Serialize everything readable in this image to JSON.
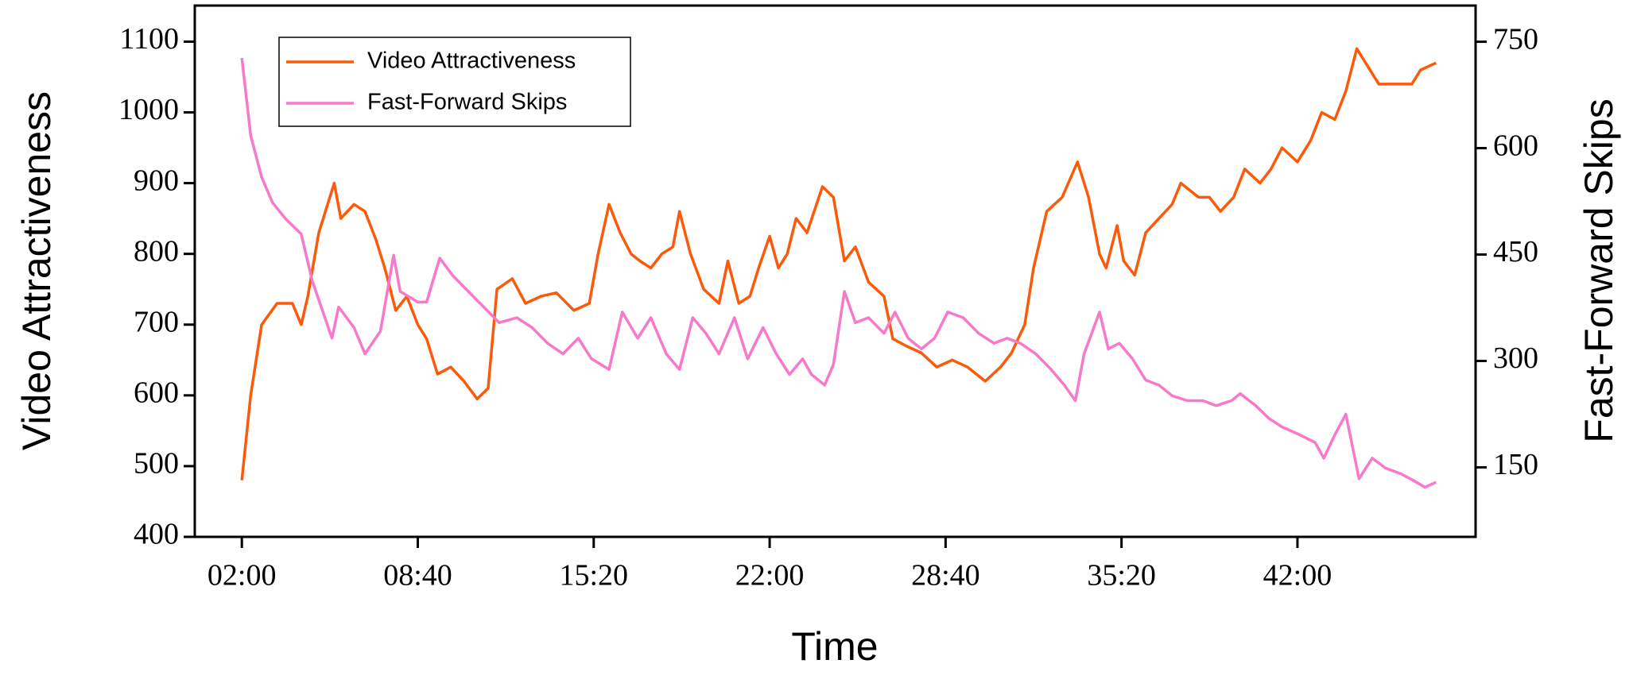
{
  "chart_data": {
    "type": "line",
    "x_label": "Time",
    "y_label": "Video Attractiveness",
    "y2_label": "Fast-Forward Skips",
    "xlim": [
      13,
      2925
    ],
    "xticks": [
      {
        "value": 120,
        "label": "02:00"
      },
      {
        "value": 520,
        "label": "08:40"
      },
      {
        "value": 920,
        "label": "15:20"
      },
      {
        "value": 1320,
        "label": "22:00"
      },
      {
        "value": 1720,
        "label": "28:40"
      },
      {
        "value": 2120,
        "label": "35:20"
      },
      {
        "value": 2520,
        "label": "42:00"
      }
    ],
    "ylim": [
      400,
      1151
    ],
    "yticks": [
      400,
      500,
      600,
      700,
      800,
      900,
      1000,
      1100
    ],
    "y2lim": [
      52,
      801
    ],
    "y2ticks": [
      150,
      300,
      450,
      600,
      750
    ],
    "legend": "upper-left",
    "series": [
      {
        "name": "Video Attractiveness",
        "color": "#fa5a0a",
        "axis": "y",
        "x": [
          120,
          140,
          165,
          200,
          235,
          255,
          270,
          295,
          330,
          345,
          375,
          400,
          425,
          445,
          470,
          495,
          520,
          540,
          565,
          595,
          625,
          655,
          680,
          700,
          735,
          765,
          800,
          835,
          875,
          910,
          930,
          955,
          980,
          1005,
          1025,
          1050,
          1075,
          1100,
          1115,
          1140,
          1170,
          1205,
          1225,
          1250,
          1275,
          1295,
          1320,
          1340,
          1360,
          1380,
          1405,
          1440,
          1465,
          1490,
          1515,
          1545,
          1580,
          1600,
          1630,
          1665,
          1700,
          1735,
          1770,
          1810,
          1845,
          1870,
          1900,
          1920,
          1950,
          1985,
          2020,
          2045,
          2070,
          2085,
          2110,
          2125,
          2150,
          2175,
          2205,
          2235,
          2255,
          2295,
          2320,
          2345,
          2375,
          2400,
          2435,
          2460,
          2485,
          2520,
          2550,
          2575,
          2605,
          2630,
          2655,
          2685,
          2705,
          2745,
          2780,
          2800,
          2835
        ],
        "values": [
          480,
          600,
          700,
          730,
          730,
          700,
          740,
          830,
          900,
          850,
          870,
          860,
          820,
          780,
          720,
          740,
          700,
          680,
          630,
          640,
          620,
          595,
          610,
          750,
          765,
          730,
          740,
          745,
          720,
          730,
          800,
          870,
          830,
          800,
          790,
          780,
          800,
          810,
          860,
          800,
          750,
          730,
          790,
          730,
          740,
          780,
          825,
          780,
          800,
          850,
          830,
          895,
          880,
          790,
          810,
          760,
          740,
          680,
          670,
          660,
          640,
          650,
          640,
          620,
          640,
          660,
          700,
          780,
          860,
          880,
          930,
          880,
          800,
          780,
          840,
          790,
          770,
          830,
          850,
          870,
          900,
          880,
          880,
          860,
          880,
          920,
          900,
          920,
          950,
          930,
          960,
          1000,
          990,
          1030,
          1090,
          1060,
          1040,
          1040,
          1040,
          1060,
          1070
        ]
      },
      {
        "name": "Fast-Forward Skips",
        "color": "#f779c9",
        "axis": "y2",
        "x": [
          120,
          140,
          165,
          190,
          220,
          255,
          280,
          325,
          340,
          375,
          400,
          435,
          465,
          480,
          520,
          540,
          570,
          600,
          635,
          670,
          705,
          745,
          780,
          815,
          850,
          885,
          915,
          955,
          985,
          1020,
          1050,
          1085,
          1115,
          1145,
          1175,
          1205,
          1240,
          1270,
          1305,
          1335,
          1365,
          1395,
          1415,
          1445,
          1465,
          1490,
          1515,
          1545,
          1580,
          1605,
          1635,
          1665,
          1695,
          1725,
          1760,
          1795,
          1830,
          1860,
          1890,
          1925,
          1960,
          1990,
          2015,
          2035,
          2070,
          2090,
          2115,
          2145,
          2175,
          2205,
          2235,
          2270,
          2305,
          2335,
          2370,
          2390,
          2425,
          2455,
          2485,
          2525,
          2560,
          2580,
          2605,
          2630,
          2660,
          2690,
          2720,
          2755,
          2785,
          2810,
          2835
        ],
        "values": [
          727,
          618,
          559,
          523,
          500,
          479,
          413,
          332,
          376,
          347,
          310,
          342,
          449,
          398,
          383,
          383,
          445,
          420,
          398,
          376,
          354,
          361,
          347,
          325,
          310,
          332,
          303,
          288,
          369,
          332,
          361,
          310,
          288,
          361,
          339,
          310,
          361,
          303,
          347,
          310,
          281,
          303,
          281,
          266,
          295,
          398,
          354,
          361,
          339,
          369,
          332,
          317,
          332,
          369,
          361,
          339,
          325,
          332,
          325,
          310,
          288,
          266,
          244,
          310,
          369,
          317,
          325,
          303,
          273,
          266,
          251,
          244,
          244,
          237,
          244,
          254,
          237,
          219,
          207,
          196,
          185,
          163,
          196,
          225,
          134,
          163,
          149,
          141,
          131,
          122,
          129
        ]
      }
    ]
  }
}
